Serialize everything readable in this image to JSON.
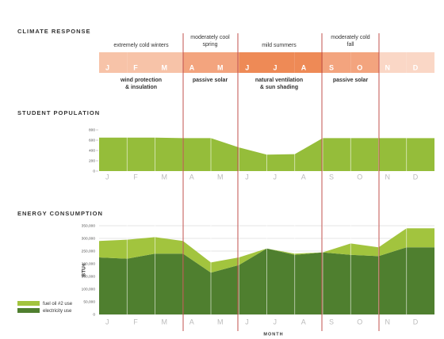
{
  "climate": {
    "title": "CLIMATE RESPONSE",
    "months": [
      "J",
      "F",
      "M",
      "A",
      "M",
      "J",
      "J",
      "A",
      "S",
      "O",
      "N",
      "D"
    ],
    "month_colors": [
      "#f7c3a8",
      "#f7c3a8",
      "#f7c3a8",
      "#f3a47e",
      "#f3a47e",
      "#ee8a56",
      "#ee8a56",
      "#ee8a56",
      "#f3a47e",
      "#f3a47e",
      "#fad7c6",
      "#fad7c6"
    ],
    "seasons": [
      {
        "label_lines": [
          "extremely cold winters"
        ],
        "strategy_lines": [
          "wind protection",
          "& insulation"
        ]
      },
      {
        "label_lines": [
          "moderately cool",
          "spring"
        ],
        "strategy_lines": [
          "passive solar"
        ]
      },
      {
        "label_lines": [
          "mild summers"
        ],
        "strategy_lines": [
          "natural ventilation",
          "& sun shading"
        ]
      },
      {
        "label_lines": [
          "moderately cold",
          "fall"
        ],
        "strategy_lines": [
          "passive solar"
        ]
      }
    ]
  },
  "chart_data": [
    {
      "type": "area",
      "title": "STUDENT POPULATION",
      "categories": [
        "J",
        "F",
        "M",
        "A",
        "M",
        "J",
        "J",
        "A",
        "S",
        "O",
        "N",
        "D"
      ],
      "values": [
        650,
        650,
        650,
        640,
        640,
        460,
        320,
        330,
        640,
        640,
        640,
        640
      ],
      "color": "#95bd3a",
      "ylim": [
        0,
        800
      ],
      "yticks": [
        0,
        200,
        400,
        600,
        800
      ]
    },
    {
      "type": "stacked_area",
      "title": "ENERGY CONSUMPTION",
      "ylabel": "BTUs",
      "xlabel": "MONTH",
      "categories": [
        "J",
        "F",
        "M",
        "A",
        "M",
        "J",
        "J",
        "A",
        "S",
        "O",
        "N",
        "D"
      ],
      "series": [
        {
          "name": "fuel oil #2 use",
          "color": "#a2c43e",
          "values": [
            65000,
            75000,
            65000,
            50000,
            40000,
            30000,
            0,
            5000,
            0,
            45000,
            35000,
            75000
          ]
        },
        {
          "name": "electricity use",
          "color": "#4f7f2f",
          "values": [
            225000,
            220000,
            240000,
            240000,
            165000,
            195000,
            260000,
            235000,
            245000,
            235000,
            230000,
            265000
          ]
        }
      ],
      "ylim": [
        0,
        350000
      ],
      "yticks": [
        0,
        {
          "value": 50000,
          "label": "50,000"
        },
        {
          "value": 100000,
          "label": "100,000"
        },
        {
          "value": 150000,
          "label": "150,000"
        },
        {
          "value": 200000,
          "label": "200,000"
        },
        {
          "value": 250000,
          "label": "250,000"
        },
        {
          "value": 300000,
          "label": "300,000"
        },
        {
          "value": 350000,
          "label": "350,000"
        }
      ]
    }
  ]
}
